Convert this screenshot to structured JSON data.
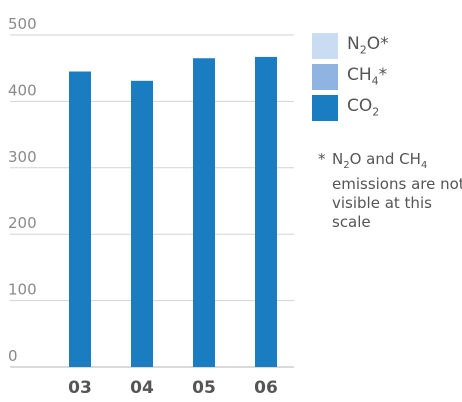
{
  "chart_data": {
    "type": "bar",
    "categories": [
      "03",
      "04",
      "05",
      "06"
    ],
    "series": [
      {
        "name": "N2O*",
        "values": [
          0,
          0,
          0,
          0
        ]
      },
      {
        "name": "CH4*",
        "values": [
          0,
          0,
          0,
          0
        ]
      },
      {
        "name": "CO2",
        "values": [
          445,
          431,
          465,
          467
        ]
      }
    ],
    "ylim": [
      0,
      500
    ],
    "yticks": [
      "0",
      "100",
      "200",
      "300",
      "400",
      "500"
    ],
    "grid": true,
    "legend": [
      {
        "label_main": "N",
        "label_sub": "2",
        "label_rest": "O*",
        "color": "#c9dcf1"
      },
      {
        "label_main": "CH",
        "label_sub": "4",
        "label_rest": "*",
        "color": "#8fb4e1"
      },
      {
        "label_main": "CO",
        "label_sub": "2",
        "label_rest": "",
        "color": "#1a7cc1"
      }
    ],
    "legend_position": "top-right",
    "bar_color": "#1a7cc1",
    "note": {
      "star": "*",
      "part1": "N",
      "sub1": "2",
      "part2": "O and CH",
      "sub2": "4",
      "part3": " emissions are not visible at this scale"
    }
  }
}
